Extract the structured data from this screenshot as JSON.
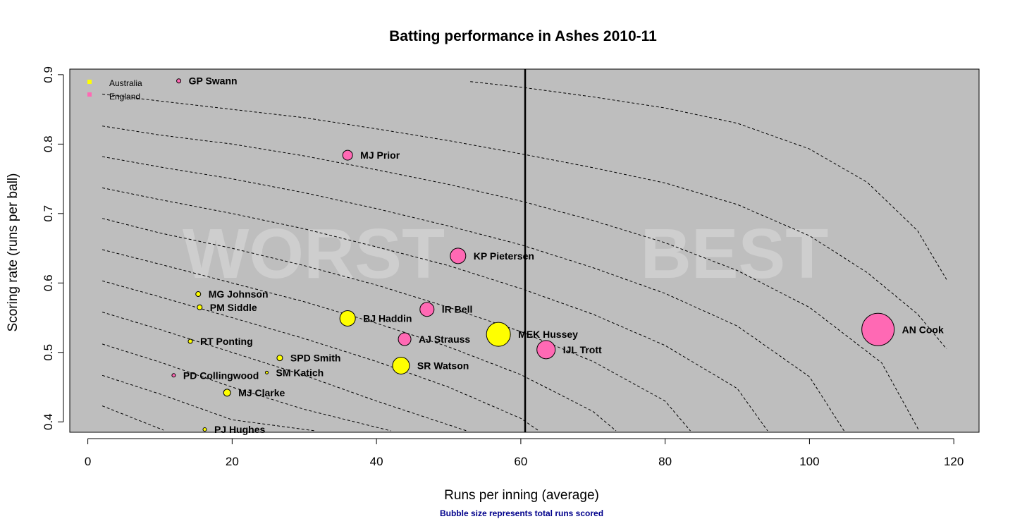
{
  "chart_data": {
    "type": "scatter",
    "title": "Batting performance in Ashes 2010-11",
    "xlabel": "Runs per inning (average)",
    "ylabel": "Scoring rate (runs per ball)",
    "caption": "Bubble size represents total runs scored",
    "xlim": [
      -2.5,
      123.5
    ],
    "ylim": [
      0.385,
      0.908
    ],
    "xticks": [
      0,
      20,
      40,
      60,
      80,
      100,
      120
    ],
    "yticks": [
      0.4,
      0.5,
      0.6,
      0.7,
      0.8,
      0.9
    ],
    "grid": false,
    "legend_position": "top-left",
    "legend": [
      {
        "name": "Australia",
        "color": "#ffff00"
      },
      {
        "name": "England",
        "color": "#ff69b4"
      }
    ],
    "watermarks": {
      "left": "WORST",
      "right": "BEST"
    },
    "vline_x": 60.6,
    "contour_lines": [
      {
        "x": [
          2,
          10.5
        ],
        "y": [
          0.423,
          0.388
        ]
      },
      {
        "x": [
          2,
          10,
          20,
          31.5
        ],
        "y": [
          0.467,
          0.44,
          0.403,
          0.387
        ]
      },
      {
        "x": [
          2,
          10,
          20,
          30,
          42
        ],
        "y": [
          0.512,
          0.486,
          0.45,
          0.418,
          0.387
        ]
      },
      {
        "x": [
          2,
          10,
          20,
          30,
          40,
          52.5
        ],
        "y": [
          0.558,
          0.533,
          0.5,
          0.467,
          0.43,
          0.387
        ]
      },
      {
        "x": [
          2,
          10,
          20,
          30,
          40,
          50,
          60,
          62.5
        ],
        "y": [
          0.603,
          0.58,
          0.55,
          0.52,
          0.487,
          0.45,
          0.405,
          0.387
        ]
      },
      {
        "x": [
          2,
          10,
          20,
          30,
          40,
          50,
          60,
          70,
          73.2
        ],
        "y": [
          0.648,
          0.627,
          0.6,
          0.573,
          0.542,
          0.508,
          0.468,
          0.415,
          0.387
        ]
      },
      {
        "x": [
          2,
          10,
          20,
          30,
          40,
          50,
          60,
          70,
          80,
          83.5
        ],
        "y": [
          0.693,
          0.672,
          0.65,
          0.625,
          0.597,
          0.565,
          0.53,
          0.487,
          0.43,
          0.387
        ]
      },
      {
        "x": [
          2,
          10,
          20,
          30,
          40,
          50,
          60,
          70,
          80,
          90,
          94.2
        ],
        "y": [
          0.737,
          0.72,
          0.7,
          0.678,
          0.652,
          0.625,
          0.592,
          0.555,
          0.51,
          0.448,
          0.387
        ]
      },
      {
        "x": [
          2,
          10,
          20,
          30,
          40,
          50,
          60,
          70,
          80,
          90,
          100,
          104.8
        ],
        "y": [
          0.782,
          0.767,
          0.75,
          0.73,
          0.707,
          0.682,
          0.655,
          0.622,
          0.585,
          0.538,
          0.465,
          0.387
        ]
      },
      {
        "x": [
          2,
          10,
          20,
          30,
          40,
          50,
          60,
          70,
          80,
          90,
          100,
          110,
          115.2
        ],
        "y": [
          0.826,
          0.813,
          0.8,
          0.783,
          0.763,
          0.742,
          0.718,
          0.69,
          0.658,
          0.618,
          0.565,
          0.485,
          0.387
        ]
      },
      {
        "x": [
          2,
          10,
          20,
          30,
          40,
          50,
          60,
          70,
          80,
          90,
          100,
          108,
          115,
          119
        ],
        "y": [
          0.872,
          0.862,
          0.85,
          0.838,
          0.822,
          0.805,
          0.786,
          0.766,
          0.744,
          0.713,
          0.668,
          0.615,
          0.555,
          0.505
        ]
      },
      {
        "x": [
          53,
          60,
          70,
          80,
          90,
          100,
          108,
          115,
          119
        ],
        "y": [
          0.89,
          0.882,
          0.868,
          0.852,
          0.83,
          0.793,
          0.745,
          0.675,
          0.605
        ]
      }
    ],
    "points": [
      {
        "name": "GP Swann",
        "team": "England",
        "x": 12.6,
        "y": 0.891,
        "r": 3
      },
      {
        "name": "MJ Prior",
        "team": "England",
        "x": 36,
        "y": 0.784,
        "r": 7
      },
      {
        "name": "KP Pietersen",
        "team": "England",
        "x": 51.3,
        "y": 0.639,
        "r": 11
      },
      {
        "name": "MG Johnson",
        "team": "Australia",
        "x": 15.3,
        "y": 0.584,
        "r": 3.5
      },
      {
        "name": "PM Siddle",
        "team": "Australia",
        "x": 15.5,
        "y": 0.565,
        "r": 3.5
      },
      {
        "name": "IR Bell",
        "team": "England",
        "x": 47,
        "y": 0.562,
        "r": 10
      },
      {
        "name": "BJ Haddin",
        "team": "Australia",
        "x": 36,
        "y": 0.549,
        "r": 11
      },
      {
        "name": "AN Cook",
        "team": "England",
        "x": 109.5,
        "y": 0.533,
        "r": 23
      },
      {
        "name": "MEK Hussey",
        "team": "Australia",
        "x": 56.9,
        "y": 0.526,
        "r": 17
      },
      {
        "name": "AJ Strauss",
        "team": "England",
        "x": 43.9,
        "y": 0.519,
        "r": 9
      },
      {
        "name": "RT Ponting",
        "team": "Australia",
        "x": 14.2,
        "y": 0.516,
        "r": 3
      },
      {
        "name": "IJL Trott",
        "team": "England",
        "x": 63.5,
        "y": 0.504,
        "r": 13
      },
      {
        "name": "SPD Smith",
        "team": "Australia",
        "x": 26.6,
        "y": 0.492,
        "r": 4
      },
      {
        "name": "SR Watson",
        "team": "Australia",
        "x": 43.4,
        "y": 0.481,
        "r": 12
      },
      {
        "name": "SM Katich",
        "team": "Australia",
        "x": 24.8,
        "y": 0.471,
        "r": 2
      },
      {
        "name": "PD Collingwood",
        "team": "England",
        "x": 11.9,
        "y": 0.467,
        "r": 2.5
      },
      {
        "name": "MJ Clarke",
        "team": "Australia",
        "x": 19.3,
        "y": 0.442,
        "r": 5
      },
      {
        "name": "PJ Hughes",
        "team": "Australia",
        "x": 16.2,
        "y": 0.389,
        "r": 2.5
      }
    ]
  }
}
